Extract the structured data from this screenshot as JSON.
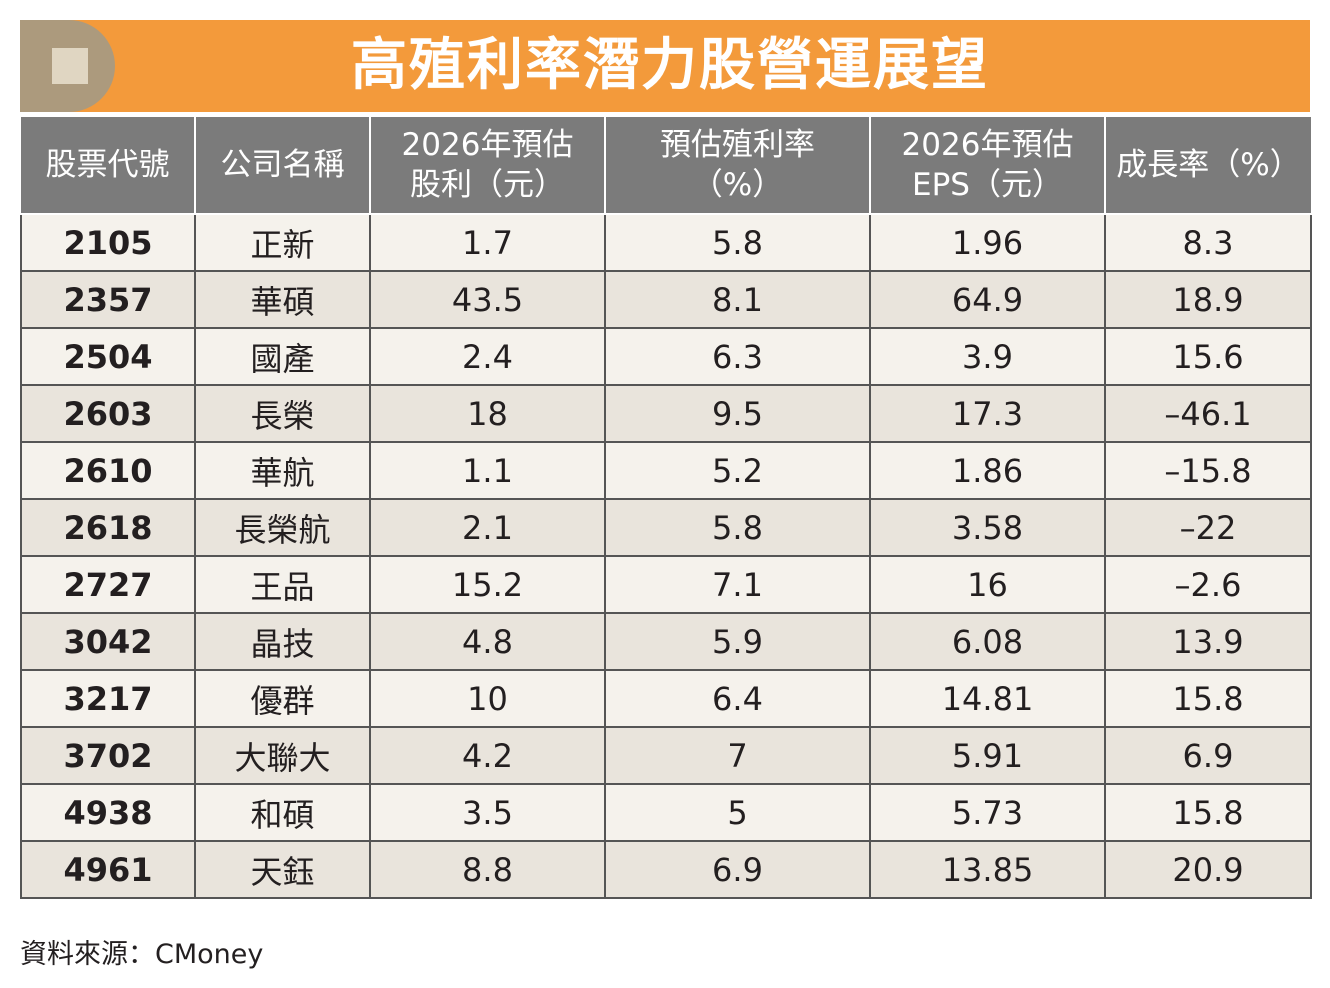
{
  "title": "高殖利率潛力股營運展望",
  "headers": [
    {
      "line1": "股票代號",
      "line2": ""
    },
    {
      "line1": "公司名稱",
      "line2": ""
    },
    {
      "line1": "2026年預估",
      "line2": "股利（元）"
    },
    {
      "line1": "預估殖利率",
      "line2": "（%）"
    },
    {
      "line1": "2026年預估",
      "line2": "EPS（元）"
    },
    {
      "line1": "成長率（%）",
      "line2": ""
    }
  ],
  "rows": [
    {
      "code": "2105",
      "name": "正新",
      "dividend": "1.7",
      "yield": "5.8",
      "eps": "1.96",
      "growth": "8.3"
    },
    {
      "code": "2357",
      "name": "華碩",
      "dividend": "43.5",
      "yield": "8.1",
      "eps": "64.9",
      "growth": "18.9"
    },
    {
      "code": "2504",
      "name": "國產",
      "dividend": "2.4",
      "yield": "6.3",
      "eps": "3.9",
      "growth": "15.6"
    },
    {
      "code": "2603",
      "name": "長榮",
      "dividend": "18",
      "yield": "9.5",
      "eps": "17.3",
      "growth": "–46.1"
    },
    {
      "code": "2610",
      "name": "華航",
      "dividend": "1.1",
      "yield": "5.2",
      "eps": "1.86",
      "growth": "–15.8"
    },
    {
      "code": "2618",
      "name": "長榮航",
      "dividend": "2.1",
      "yield": "5.8",
      "eps": "3.58",
      "growth": "–22"
    },
    {
      "code": "2727",
      "name": "王品",
      "dividend": "15.2",
      "yield": "7.1",
      "eps": "16",
      "growth": "–2.6"
    },
    {
      "code": "3042",
      "name": "晶技",
      "dividend": "4.8",
      "yield": "5.9",
      "eps": "6.08",
      "growth": "13.9"
    },
    {
      "code": "3217",
      "name": "優群",
      "dividend": "10",
      "yield": "6.4",
      "eps": "14.81",
      "growth": "15.8"
    },
    {
      "code": "3702",
      "name": "大聯大",
      "dividend": "4.2",
      "yield": "7",
      "eps": "5.91",
      "growth": "6.9"
    },
    {
      "code": "4938",
      "name": "和碩",
      "dividend": "3.5",
      "yield": "5",
      "eps": "5.73",
      "growth": "15.8"
    },
    {
      "code": "4961",
      "name": "天鈺",
      "dividend": "8.8",
      "yield": "6.9",
      "eps": "13.85",
      "growth": "20.9"
    }
  ],
  "source": "資料來源：CMoney",
  "colors": {
    "title_bar": "#f39a3b",
    "title_tab": "#ac9a7d",
    "header_bg": "#7b7b7b",
    "row_light": "#f5f2ec",
    "row_dark": "#e9e4dc"
  }
}
